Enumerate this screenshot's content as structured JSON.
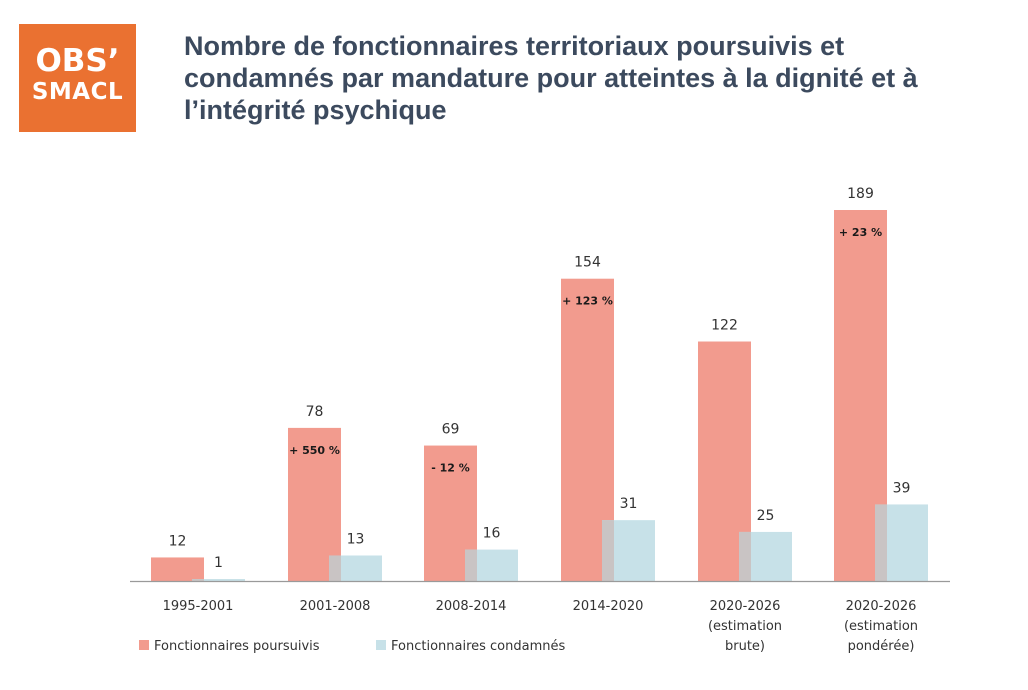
{
  "logo": {
    "line1": "OBS’",
    "line2": "SMACL"
  },
  "colors": {
    "logo_bg": "#ea7131",
    "poursuivis": "#f29b8e",
    "condamnes": "#c7e1e8",
    "overlap": "#c9c4c4",
    "axis": "#9a9a9a",
    "text": "#333333",
    "title": "#3c4a5e"
  },
  "chart_data": {
    "type": "bar",
    "title": "Nombre de fonctionnaires territoriaux poursuivis et condamnés par mandature pour atteintes à la dignité et à l’intégrité psychique",
    "categories": [
      [
        "1995-2001"
      ],
      [
        "2001-2008"
      ],
      [
        "2008-2014"
      ],
      [
        "2014-2020"
      ],
      [
        "2020-2026",
        "(estimation",
        "brute)"
      ],
      [
        "2020-2026",
        "(estimation",
        "pondérée)"
      ]
    ],
    "series": [
      {
        "name": "Fonctionnaires poursuivis",
        "values": [
          12,
          78,
          69,
          154,
          122,
          189
        ]
      },
      {
        "name": "Fonctionnaires condamnés",
        "values": [
          1,
          13,
          16,
          31,
          25,
          39
        ]
      }
    ],
    "annotations": [
      "",
      "+ 550 %",
      "- 12 %",
      "+ 123 %",
      "",
      "+ 23 %"
    ],
    "ylim": [
      0,
      200
    ],
    "grid": false,
    "legend": "bottom-left"
  }
}
